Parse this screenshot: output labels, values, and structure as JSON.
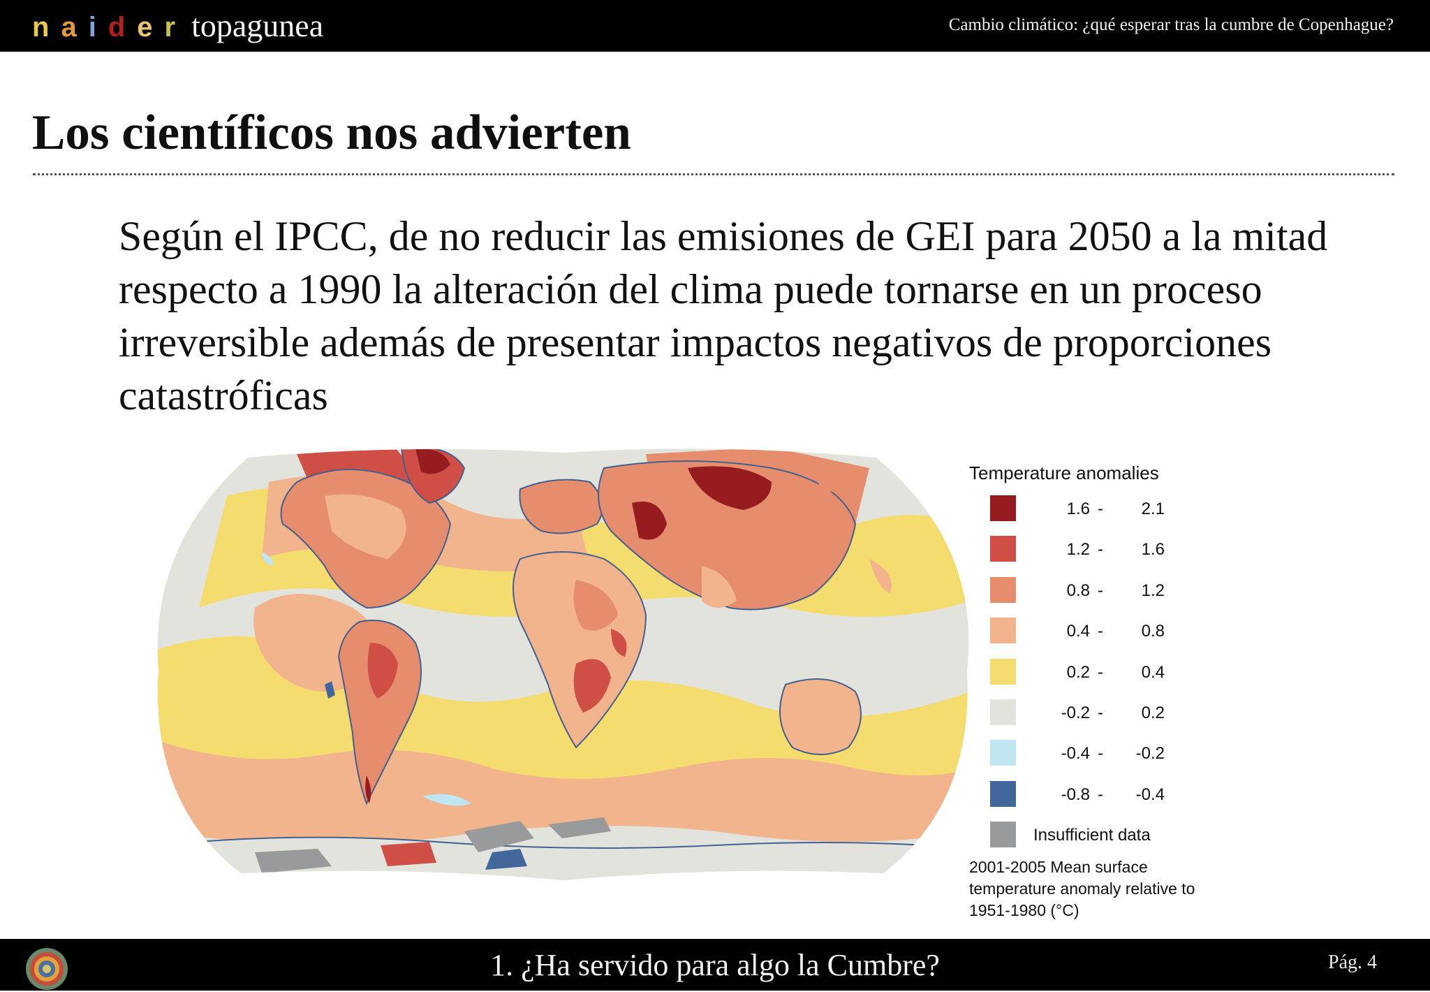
{
  "header": {
    "brand_letters": [
      {
        "char": "n",
        "color": "#e8c94a"
      },
      {
        "char": "a",
        "color": "#e49a3a"
      },
      {
        "char": "i",
        "color": "#7fa3d6"
      },
      {
        "char": "d",
        "color": "#b3201f"
      },
      {
        "char": "e",
        "color": "#e9c56c"
      },
      {
        "char": "r",
        "color": "#c9c44a"
      }
    ],
    "brand_suffix": "topagunea",
    "title": "Cambio climático: ¿qué esperar tras la cumbre de Copenhague?"
  },
  "slide": {
    "title": "Los científicos nos advierten",
    "body": "Según el IPCC, de no reducir las emisiones de GEI para 2050 a la mitad respecto a 1990 la alteración del clima puede tornarse en un proceso irreversible además de presentar impactos negativos de proporciones catastróficas"
  },
  "map": {
    "background_color": "#e3e3dd",
    "legend": {
      "title": "Temperature anomalies",
      "items": [
        {
          "lo": "1.6",
          "hi": "2.1",
          "color": "#971c20"
        },
        {
          "lo": "1.2",
          "hi": "1.6",
          "color": "#cf4f46"
        },
        {
          "lo": "0.8",
          "hi": "1.2",
          "color": "#e58d6c"
        },
        {
          "lo": "0.4",
          "hi": "0.8",
          "color": "#f1b48c"
        },
        {
          "lo": "0.2",
          "hi": "0.4",
          "color": "#f5dc6e"
        },
        {
          "lo": "-0.2",
          "hi": "0.2",
          "color": "#e3e3dd"
        },
        {
          "lo": "-0.4",
          "hi": "-0.2",
          "color": "#bfe6f1"
        },
        {
          "lo": "-0.8",
          "hi": "-0.4",
          "color": "#42679a"
        }
      ],
      "separator": "-",
      "insufficient": {
        "label": "Insufficient data",
        "color": "#999a9c"
      },
      "note": "2001-2005 Mean surface temperature anomaly relative to 1951-1980 (°C)"
    }
  },
  "footer": {
    "title": "1. ¿Ha servido para algo la Cumbre?",
    "page": "Pág. 4"
  }
}
